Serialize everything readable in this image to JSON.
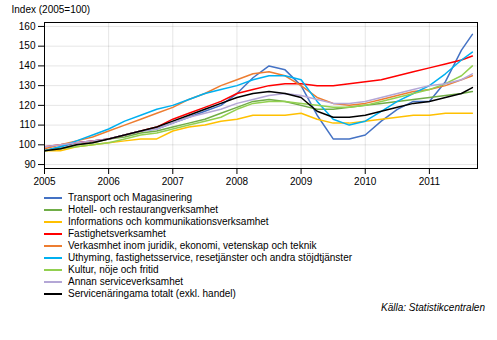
{
  "chart_data": {
    "type": "line",
    "ylabel": "Index (2005=100)",
    "annotations": [
      "Källa: Statistikcentralen"
    ],
    "x": [
      2005.0,
      2005.25,
      2005.5,
      2005.75,
      2006.0,
      2006.25,
      2006.5,
      2006.75,
      2007.0,
      2007.25,
      2007.5,
      2007.75,
      2008.0,
      2008.25,
      2008.5,
      2008.75,
      2009.0,
      2009.25,
      2009.5,
      2009.75,
      2010.0,
      2010.25,
      2010.5,
      2010.75,
      2011.0,
      2011.25,
      2011.5,
      2011.67
    ],
    "xlim": [
      2005.0,
      2011.75
    ],
    "xticks": [
      2005,
      2006,
      2007,
      2008,
      2009,
      2010,
      2011
    ],
    "ylim": [
      88,
      162
    ],
    "yticks": [
      90,
      100,
      110,
      120,
      130,
      140,
      150,
      160
    ],
    "grid": true,
    "legend": "bottom",
    "series": [
      {
        "name": "Transport och Magasinering",
        "color": "#4472C4",
        "values": [
          97,
          99,
          101,
          102,
          103,
          105,
          107,
          108,
          111,
          114,
          117,
          120,
          126,
          134,
          140,
          138,
          130,
          115,
          103,
          103,
          105,
          112,
          118,
          122,
          122,
          132,
          148,
          156
        ]
      },
      {
        "name": "Hotell- och restaurangverksamhet",
        "color": "#70AD47",
        "values": [
          97,
          98,
          100,
          101,
          103,
          104,
          106,
          107,
          109,
          111,
          113,
          116,
          119,
          122,
          123,
          122,
          120,
          118,
          118,
          119,
          120,
          121,
          122,
          123,
          124,
          125,
          126,
          127
        ]
      },
      {
        "name": "Informations och kommunikationsverksamhet",
        "color": "#FFC000",
        "values": [
          97,
          97,
          99,
          100,
          101,
          102,
          103,
          103,
          107,
          109,
          110,
          112,
          113,
          115,
          115,
          115,
          116,
          113,
          111,
          111,
          112,
          113,
          114,
          115,
          115,
          116,
          116,
          116
        ]
      },
      {
        "name": "Fastighetsverksamhet",
        "color": "#FF0000",
        "values": [
          99,
          100,
          101,
          102,
          103,
          105,
          107,
          109,
          113,
          116,
          119,
          122,
          126,
          128,
          130,
          131,
          131,
          130,
          130,
          131,
          132,
          133,
          135,
          137,
          139,
          141,
          143,
          145
        ]
      },
      {
        "name": "Verkasmhet inom juridik, ekonomi, vetenskap och teknik",
        "color": "#ED7D31",
        "values": [
          98,
          100,
          102,
          104,
          107,
          110,
          113,
          116,
          119,
          123,
          126,
          130,
          133,
          136,
          137,
          135,
          130,
          124,
          121,
          120,
          121,
          123,
          125,
          127,
          128,
          130,
          133,
          135
        ]
      },
      {
        "name": "Uthyming, fastighetsservice, resetjänster och andra stöjdtjänster",
        "color": "#00B0F0",
        "values": [
          97,
          99,
          102,
          105,
          108,
          112,
          115,
          118,
          120,
          123,
          126,
          128,
          130,
          133,
          135,
          135,
          133,
          122,
          113,
          110,
          112,
          117,
          122,
          126,
          130,
          136,
          143,
          147
        ]
      },
      {
        "name": "Kultur, nöje och fritid",
        "color": "#92D050",
        "values": [
          97,
          98,
          99,
          100,
          101,
          103,
          105,
          106,
          108,
          110,
          112,
          114,
          118,
          121,
          122,
          122,
          121,
          120,
          119,
          119,
          120,
          122,
          124,
          126,
          128,
          131,
          135,
          140
        ]
      },
      {
        "name": "Annan serviceverksamhet",
        "color": "#B4A7D6",
        "values": [
          99,
          100,
          101,
          102,
          103,
          105,
          107,
          108,
          111,
          114,
          116,
          118,
          121,
          123,
          125,
          126,
          125,
          123,
          121,
          121,
          122,
          124,
          126,
          128,
          130,
          131,
          133,
          136
        ]
      },
      {
        "name": "Servicenäringama totalt (exkl. handel)",
        "color": "#000000",
        "values": [
          97,
          98,
          100,
          101,
          103,
          105,
          107,
          109,
          112,
          115,
          118,
          121,
          124,
          126,
          127,
          126,
          124,
          117,
          114,
          114,
          115,
          117,
          119,
          121,
          122,
          124,
          126,
          129
        ]
      }
    ]
  }
}
